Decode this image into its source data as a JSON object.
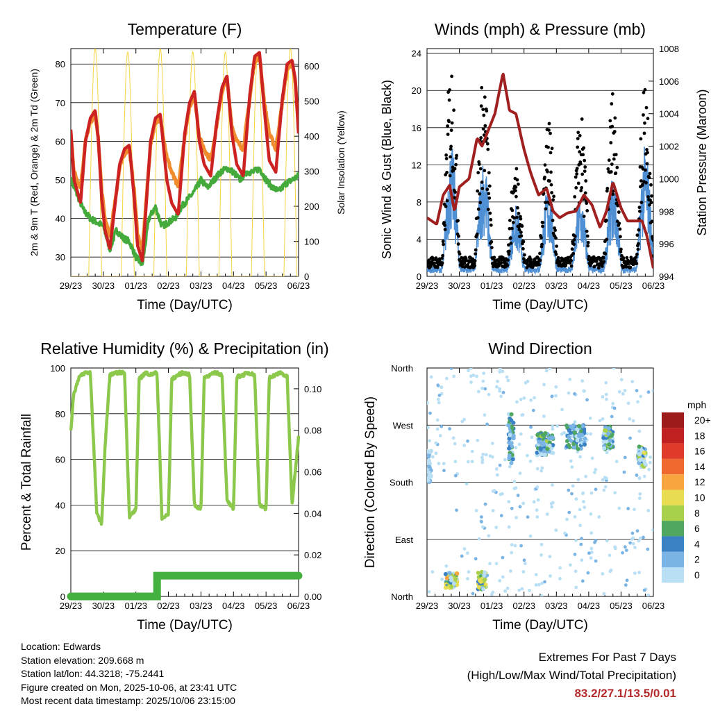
{
  "chart_data": [
    {
      "type": "line",
      "title": "Temperature (F)",
      "xlabel": "Time (Day/UTC)",
      "ylabel": "2m & 9m T (Red, Orange) & 2m Td (Green)",
      "ylabel_right": "Solar Insolation (Yellow)",
      "x_ticks": [
        "29/23",
        "30/23",
        "01/23",
        "02/23",
        "03/23",
        "04/23",
        "05/23",
        "06/23"
      ],
      "xlim": [
        0,
        7
      ],
      "ylim": [
        25,
        84
      ],
      "y_ticks": [
        30,
        40,
        50,
        60,
        70,
        80
      ],
      "ylim_right": [
        0,
        650
      ],
      "y_ticks_right": [
        0,
        100,
        200,
        300,
        400,
        500,
        600
      ],
      "series": [
        {
          "name": "2m T",
          "color": "#cc2222",
          "x": [
            0,
            0.1,
            0.3,
            0.45,
            0.6,
            0.75,
            0.85,
            0.95,
            1.05,
            1.2,
            1.5,
            1.65,
            1.8,
            1.95,
            2.05,
            2.2,
            2.45,
            2.6,
            2.75,
            2.95,
            3.1,
            3.3,
            3.5,
            3.65,
            3.8,
            3.95,
            4.1,
            4.3,
            4.5,
            4.65,
            4.8,
            4.95,
            5.1,
            5.3,
            5.5,
            5.65,
            5.8,
            5.95,
            6.1,
            6.3,
            6.5,
            6.65,
            6.8,
            6.9,
            7.0
          ],
          "values": [
            63,
            50,
            44,
            60,
            66,
            68,
            60,
            45,
            37,
            32,
            54,
            58,
            59,
            45,
            33,
            29,
            60,
            66,
            67,
            50,
            44,
            41,
            62,
            70,
            73,
            60,
            54,
            51,
            66,
            74,
            77,
            62,
            54,
            51,
            72,
            82,
            83,
            68,
            55,
            52,
            71,
            80,
            81,
            76,
            62
          ]
        },
        {
          "name": "9m T",
          "color": "#f08c2e",
          "x": [
            0,
            0.1,
            0.3,
            0.45,
            0.6,
            0.75,
            0.85,
            0.95,
            1.05,
            1.2,
            1.5,
            1.65,
            1.8,
            1.95,
            2.05,
            2.2,
            2.45,
            2.6,
            2.75,
            2.95,
            3.1,
            3.3,
            3.5,
            3.65,
            3.8,
            3.95,
            4.1,
            4.3,
            4.5,
            4.65,
            4.8,
            4.95,
            5.1,
            5.3,
            5.5,
            5.65,
            5.8,
            5.95,
            6.1,
            6.3,
            6.5,
            6.65,
            6.8,
            6.9,
            7.0
          ],
          "values": [
            62,
            52,
            48,
            60,
            65,
            67,
            60,
            47,
            40,
            35,
            53,
            57,
            58,
            47,
            36,
            32,
            59,
            65,
            66,
            56,
            52,
            48,
            61,
            69,
            72,
            61,
            58,
            55,
            65,
            73,
            76,
            64,
            60,
            58,
            71,
            81,
            82,
            70,
            62,
            58,
            70,
            79,
            80,
            75,
            63
          ]
        },
        {
          "name": "2m Td",
          "color": "#44aa3c",
          "x": [
            0,
            0.2,
            0.4,
            0.6,
            0.8,
            1.0,
            1.2,
            1.4,
            1.6,
            1.8,
            2.0,
            2.2,
            2.4,
            2.6,
            2.8,
            3.0,
            3.2,
            3.4,
            3.6,
            3.8,
            4.0,
            4.2,
            4.4,
            4.6,
            4.8,
            5.0,
            5.2,
            5.4,
            5.6,
            5.8,
            6.0,
            6.2,
            6.4,
            6.6,
            6.8,
            7.0
          ],
          "values": [
            50,
            46,
            42,
            40,
            39,
            38,
            32,
            37,
            35,
            34,
            30,
            28,
            40,
            43,
            38,
            39,
            40,
            43,
            45,
            47,
            50,
            48,
            50,
            52,
            53,
            52,
            50,
            52,
            52,
            53,
            50,
            48,
            47,
            49,
            50,
            51
          ]
        },
        {
          "name": "Solar Insolation",
          "axis": "right",
          "color": "#f5d43c",
          "peaks_x": [
            0.75,
            1.75,
            2.75,
            3.75,
            4.75,
            5.75,
            6.75
          ],
          "peak_values": [
            650,
            640,
            650,
            640,
            640,
            640,
            650
          ]
        }
      ]
    },
    {
      "type": "scatter",
      "title": "Winds (mph) & Pressure (mb)",
      "xlabel": "Time (Day/UTC)",
      "ylabel": "Sonic Wind & Gust (Blue, Black)",
      "ylabel_right": "Station Pressure (Maroon)",
      "x_ticks": [
        "29/23",
        "30/23",
        "01/23",
        "02/23",
        "03/23",
        "04/23",
        "05/23",
        "06/23"
      ],
      "xlim": [
        0,
        7
      ],
      "ylim": [
        0,
        24.5
      ],
      "y_ticks": [
        0,
        4,
        8,
        12,
        16,
        20,
        24
      ],
      "ylim_right": [
        994,
        1008
      ],
      "y_ticks_right": [
        994,
        996,
        998,
        1000,
        1002,
        1004,
        1006,
        1008
      ],
      "series": [
        {
          "name": "Gust",
          "color": "#000000",
          "peaks_x": [
            0.75,
            1.75,
            2.75,
            3.75,
            4.75,
            5.75,
            6.75
          ],
          "peak_values": [
            22.5,
            21,
            12,
            17,
            17,
            19.5,
            21
          ],
          "base": 2
        },
        {
          "name": "Sonic Wind",
          "color": "#4f8fd4",
          "peaks_x": [
            0.75,
            1.75,
            2.75,
            3.75,
            4.75,
            5.75,
            6.75
          ],
          "peak_values": [
            13,
            12,
            7,
            9,
            8,
            10,
            13
          ],
          "base": 1
        },
        {
          "name": "Station Pressure",
          "axis": "right",
          "color": "#a02020",
          "x": [
            0,
            0.3,
            0.5,
            0.7,
            0.85,
            1.0,
            1.3,
            1.55,
            1.7,
            1.9,
            2.1,
            2.35,
            2.55,
            2.75,
            3.0,
            3.2,
            3.45,
            3.7,
            3.9,
            4.1,
            4.35,
            4.6,
            4.85,
            5.1,
            5.35,
            5.55,
            5.75,
            6.0,
            6.2,
            6.45,
            6.65,
            6.8,
            7.0
          ],
          "values": [
            997.6,
            997.2,
            999.0,
            999.6,
            998.0,
            999.5,
            1000.0,
            1002.5,
            1002.0,
            1003.0,
            1004.0,
            1006.5,
            1004.2,
            1004.0,
            1001.8,
            1000.4,
            999.0,
            999.4,
            998.0,
            997.6,
            997.9,
            998.0,
            999.0,
            998.4,
            997.0,
            998.0,
            999.8,
            998.2,
            997.4,
            997.4,
            997.4,
            996.5,
            994.5
          ]
        }
      ]
    },
    {
      "type": "line",
      "title": "Relative Humidity (%) & Precipitation (in)",
      "xlabel": "Time (Day/UTC)",
      "ylabel": "Percent & Total Rainfall",
      "x_ticks": [
        "29/23",
        "30/23",
        "01/23",
        "02/23",
        "03/23",
        "04/23",
        "05/23",
        "06/23"
      ],
      "xlim": [
        0,
        7
      ],
      "ylim": [
        0,
        100
      ],
      "y_ticks": [
        0,
        20,
        40,
        60,
        80,
        100
      ],
      "ylim_right": [
        0,
        0.11
      ],
      "y_ticks_right": [
        "0.00",
        "0.02",
        "0.04",
        "0.06",
        "0.08",
        "0.10"
      ],
      "series": [
        {
          "name": "Relative Humidity",
          "color": "#8cc84b",
          "x": [
            0,
            0.08,
            0.25,
            0.45,
            0.6,
            0.8,
            0.95,
            1.05,
            1.2,
            1.45,
            1.65,
            1.8,
            2.0,
            2.1,
            2.3,
            2.45,
            2.65,
            2.8,
            3.0,
            3.1,
            3.3,
            3.45,
            3.65,
            3.8,
            4.0,
            4.1,
            4.3,
            4.45,
            4.65,
            4.8,
            5.0,
            5.1,
            5.3,
            5.45,
            5.65,
            5.8,
            6.0,
            6.1,
            6.3,
            6.45,
            6.65,
            6.8,
            7.0
          ],
          "values": [
            72,
            88,
            96,
            98,
            98,
            36,
            32,
            65,
            97,
            98,
            98,
            35,
            38,
            95,
            98,
            97,
            98,
            34,
            36,
            95,
            97,
            98,
            97,
            40,
            38,
            96,
            97,
            98,
            97,
            42,
            38,
            96,
            97,
            98,
            97,
            40,
            38,
            96,
            97,
            98,
            96,
            40,
            70
          ]
        },
        {
          "name": "Total Precipitation",
          "axis": "right",
          "color": "#44b040",
          "x": [
            0,
            2.65,
            2.65,
            7.0
          ],
          "values": [
            0.0,
            0.0,
            0.01,
            0.01
          ]
        }
      ]
    },
    {
      "type": "scatter",
      "title": "Wind Direction",
      "xlabel": "Time (Day/UTC)",
      "ylabel": "Direction (Colored By Speed)",
      "x_ticks": [
        "29/23",
        "30/23",
        "01/23",
        "02/23",
        "03/23",
        "04/23",
        "05/23",
        "06/23"
      ],
      "xlim": [
        0,
        7
      ],
      "ylim": [
        0,
        360
      ],
      "y_ticks": [
        "North",
        "East",
        "South",
        "West",
        "North"
      ],
      "legend_title": "mph",
      "legend_labels": [
        "20+",
        "18",
        "16",
        "14",
        "12",
        "10",
        "8",
        "6",
        "4",
        "2",
        "0"
      ],
      "legend_colors": [
        "#9b1a1a",
        "#c02020",
        "#e03a2a",
        "#f06a30",
        "#f8a440",
        "#e8dc50",
        "#a8d04a",
        "#50a860",
        "#3a80c4",
        "#7ab4e4",
        "#b8dff4"
      ]
    }
  ],
  "info": {
    "location": "Location: Edwards",
    "elevation": "Station elevation: 209.668 m",
    "latlon": "Station lat/lon: 44.3218; -75.2441",
    "created": "Figure created on Mon, 2025-10-06, at 23:41 UTC",
    "timestamp": "Most recent data timestamp: 2025/10/06 23:15:00"
  },
  "extremes": {
    "title": "Extremes For Past 7 Days",
    "subtitle": "(High/Low/Max Wind/Total Precipitation)",
    "values": "83.2/27.1/13.5/0.01"
  }
}
